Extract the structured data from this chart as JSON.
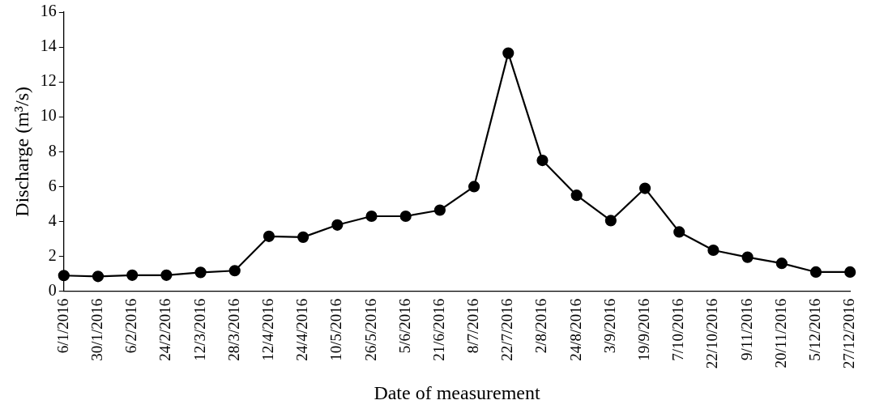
{
  "chart_data": {
    "type": "line",
    "xlabel": "Date of measurement",
    "ylabel": "Discharge (m³/s)",
    "categories": [
      "6/1/2016",
      "30/1/2016",
      "6/2/2016",
      "24/2/2016",
      "12/3/2016",
      "28/3/2016",
      "12/4/2016",
      "24/4/2016",
      "10/5/2016",
      "26/5/2016",
      "5/6/2016",
      "21/6/2016",
      "8/7/2016",
      "22/7/2016",
      "2/8/2016",
      "24/8/2016",
      "3/9/2016",
      "19/9/2016",
      "7/10/2016",
      "22/10/2016",
      "9/11/2016",
      "20/11/2016",
      "5/12/2016",
      "27/12/2016"
    ],
    "series": [
      {
        "color": "#000000",
        "values": [
          0.9,
          0.85,
          0.92,
          0.92,
          1.08,
          1.18,
          3.15,
          3.1,
          3.8,
          4.3,
          4.3,
          4.65,
          6.0,
          13.65,
          7.5,
          5.5,
          4.05,
          5.9,
          3.4,
          2.35,
          1.95,
          1.6,
          1.1,
          1.1
        ]
      }
    ],
    "ylim": [
      0,
      16
    ],
    "yticks": [
      0,
      2,
      4,
      6,
      8,
      10,
      12,
      14,
      16
    ],
    "grid": false,
    "legend": false,
    "marker": "circle",
    "line_style": "solid"
  }
}
